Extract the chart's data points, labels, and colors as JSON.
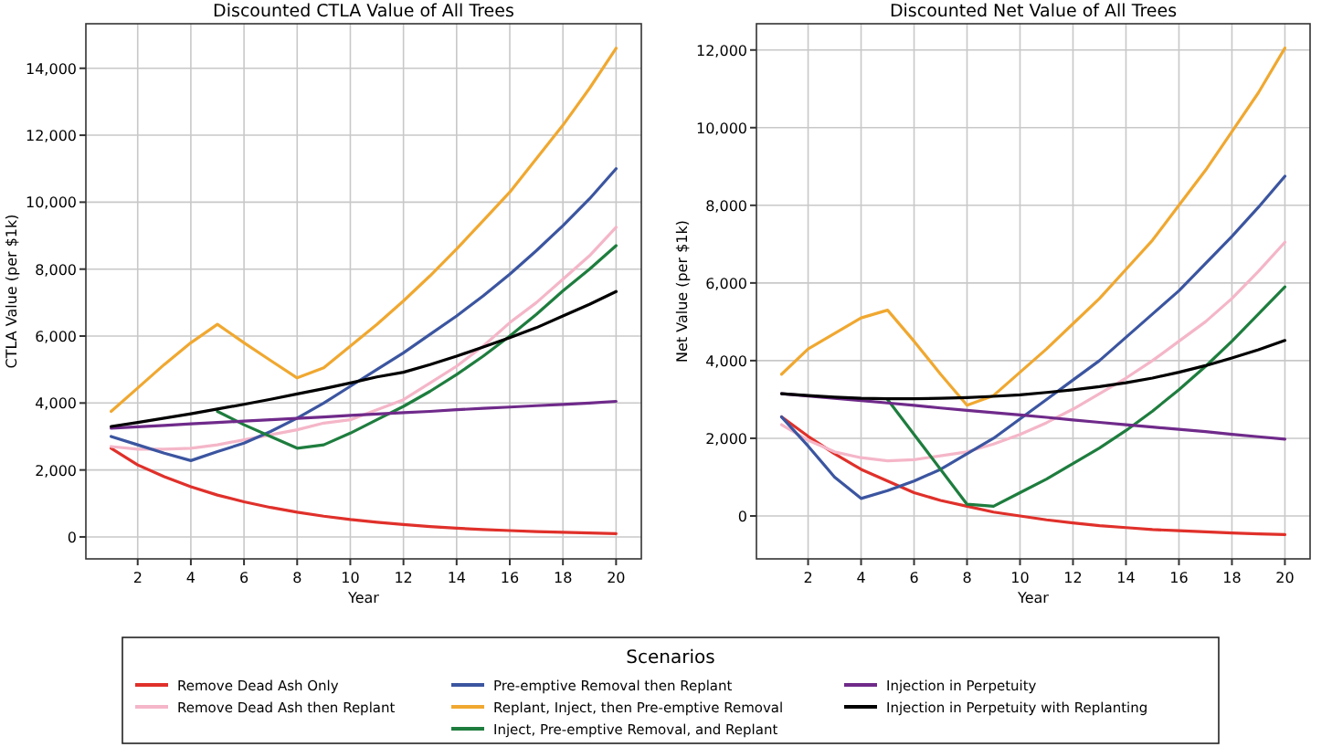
{
  "chart_data": [
    {
      "type": "line",
      "title": "Discounted CTLA Value of All Trees",
      "xlabel": "Year",
      "ylabel": "CTLA Value (per $1k)",
      "legend_title": "Scenarios",
      "legend": "bottom",
      "grid": true,
      "line_style": "solid",
      "x": [
        1,
        2,
        3,
        4,
        5,
        6,
        7,
        8,
        9,
        10,
        11,
        12,
        13,
        14,
        15,
        16,
        17,
        18,
        19,
        20
      ],
      "xlim": [
        0.05,
        20.95
      ],
      "xticks": [
        2,
        4,
        6,
        8,
        10,
        12,
        14,
        16,
        18,
        20
      ],
      "ylim": [
        -656,
        15330
      ],
      "yticks": [
        {
          "value": 0,
          "label": "0"
        },
        {
          "value": 2000,
          "label": "2,000"
        },
        {
          "value": 4000,
          "label": "4,000"
        },
        {
          "value": 6000,
          "label": "6,000"
        },
        {
          "value": 8000,
          "label": "8,000"
        },
        {
          "value": 10000,
          "label": "10,000"
        },
        {
          "value": 12000,
          "label": "12,000"
        },
        {
          "value": 14000,
          "label": "14,000"
        }
      ],
      "series": [
        {
          "name": "Remove Dead Ash Only",
          "color": "#e0302a",
          "values": [
            2650,
            2150,
            1800,
            1500,
            1250,
            1050,
            880,
            740,
            620,
            520,
            440,
            370,
            310,
            260,
            220,
            190,
            160,
            140,
            120,
            100
          ]
        },
        {
          "name": "Remove Dead Ash then Replant",
          "color": "#f4b6c8",
          "values": [
            2700,
            2620,
            2620,
            2650,
            2750,
            2900,
            3050,
            3200,
            3400,
            3500,
            3800,
            4100,
            4600,
            5100,
            5700,
            6400,
            7000,
            7700,
            8400,
            9250
          ]
        },
        {
          "name": "Pre-emptive Removal then Replant",
          "color": "#3b55a0",
          "values": [
            3000,
            2750,
            2500,
            2280,
            2550,
            2800,
            3150,
            3550,
            4000,
            4500,
            5000,
            5500,
            6050,
            6600,
            7200,
            7850,
            8550,
            9300,
            10100,
            11000
          ]
        },
        {
          "name": "Replant, Inject, then Pre-emptive Removal",
          "color": "#f0a830",
          "values": [
            3750,
            4450,
            5150,
            5800,
            6350,
            5800,
            5270,
            4750,
            5050,
            5700,
            6350,
            7050,
            7800,
            8600,
            9450,
            10300,
            11300,
            12300,
            13400,
            14600
          ]
        },
        {
          "name": "Inject, Pre-emptive Removal, and Replant",
          "color": "#1e7d3e",
          "values": [
            null,
            null,
            null,
            null,
            3750,
            3350,
            3000,
            2650,
            2750,
            3100,
            3500,
            3900,
            4350,
            4850,
            5400,
            6000,
            6650,
            7350,
            8000,
            8700
          ]
        },
        {
          "name": "Injection in Perpetuity",
          "color": "#6f2a8a",
          "values": [
            3250,
            3290,
            3330,
            3380,
            3420,
            3460,
            3500,
            3540,
            3580,
            3630,
            3670,
            3710,
            3750,
            3800,
            3840,
            3880,
            3920,
            3960,
            4000,
            4050
          ]
        },
        {
          "name": "Injection in Perpetuity with Replanting",
          "color": "#000000",
          "values": [
            3300,
            3420,
            3550,
            3680,
            3820,
            3960,
            4110,
            4270,
            4430,
            4600,
            4780,
            4920,
            5150,
            5400,
            5670,
            5950,
            6250,
            6600,
            6950,
            7330
          ]
        }
      ]
    },
    {
      "type": "line",
      "title": "Discounted Net Value of All Trees",
      "xlabel": "Year",
      "ylabel": "Net Value (per $1k)",
      "grid": true,
      "line_style": "solid",
      "x": [
        1,
        2,
        3,
        4,
        5,
        6,
        7,
        8,
        9,
        10,
        11,
        12,
        13,
        14,
        15,
        16,
        17,
        18,
        19,
        20
      ],
      "xlim": [
        0.05,
        20.95
      ],
      "xticks": [
        2,
        4,
        6,
        8,
        10,
        12,
        14,
        16,
        18,
        20
      ],
      "ylim": [
        -1106,
        12676
      ],
      "yticks": [
        {
          "value": 0,
          "label": "0"
        },
        {
          "value": 2000,
          "label": "2,000"
        },
        {
          "value": 4000,
          "label": "4,000"
        },
        {
          "value": 6000,
          "label": "6,000"
        },
        {
          "value": 8000,
          "label": "8,000"
        },
        {
          "value": 10000,
          "label": "10,000"
        },
        {
          "value": 12000,
          "label": "12,000"
        }
      ],
      "series": [
        {
          "color": "#e0302a",
          "values": [
            2550,
            2050,
            1600,
            1200,
            900,
            600,
            400,
            250,
            100,
            0,
            -100,
            -180,
            -250,
            -300,
            -350,
            -380,
            -410,
            -440,
            -460,
            -480
          ]
        },
        {
          "color": "#f4b6c8",
          "values": [
            2350,
            1950,
            1650,
            1500,
            1420,
            1450,
            1550,
            1650,
            1850,
            2100,
            2400,
            2750,
            3150,
            3550,
            4000,
            4500,
            5000,
            5600,
            6300,
            7050
          ]
        },
        {
          "color": "#3b55a0",
          "values": [
            2550,
            1800,
            1000,
            450,
            650,
            900,
            1200,
            1600,
            2000,
            2500,
            3000,
            3500,
            4000,
            4600,
            5200,
            5800,
            6500,
            7200,
            7950,
            8750
          ]
        },
        {
          "color": "#f0a830",
          "values": [
            3650,
            4300,
            4700,
            5100,
            5300,
            4500,
            3650,
            2850,
            3100,
            3700,
            4300,
            4950,
            5600,
            6350,
            7100,
            8000,
            8900,
            9900,
            10900,
            12050
          ]
        },
        {
          "color": "#1e7d3e",
          "values": [
            null,
            null,
            null,
            null,
            3000,
            2100,
            1200,
            300,
            250,
            600,
            950,
            1350,
            1750,
            2200,
            2700,
            3250,
            3850,
            4500,
            5200,
            5900
          ]
        },
        {
          "color": "#6f2a8a",
          "values": [
            3150,
            3090,
            3030,
            2970,
            2910,
            2850,
            2780,
            2720,
            2660,
            2600,
            2540,
            2470,
            2410,
            2350,
            2290,
            2230,
            2170,
            2100,
            2040,
            1980
          ]
        },
        {
          "color": "#000000",
          "values": [
            3150,
            3100,
            3060,
            3030,
            3020,
            3020,
            3030,
            3050,
            3080,
            3120,
            3180,
            3250,
            3330,
            3430,
            3550,
            3700,
            3870,
            4070,
            4280,
            4520
          ]
        }
      ]
    }
  ]
}
